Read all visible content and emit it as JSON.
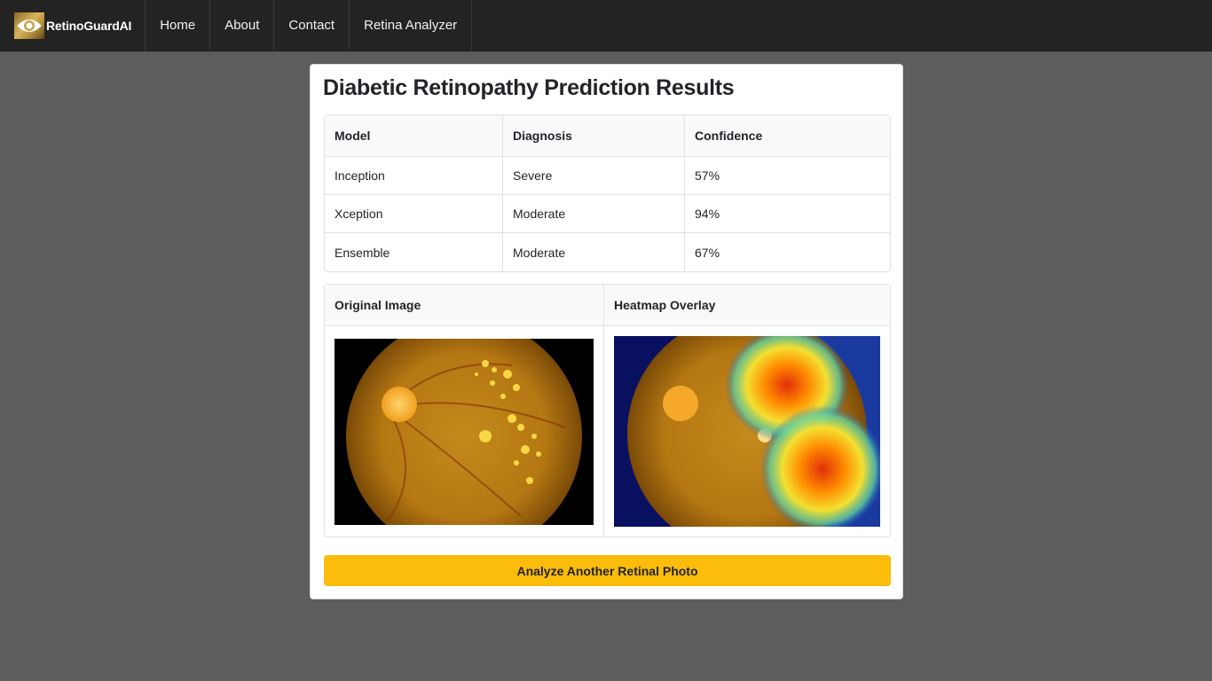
{
  "nav": {
    "brand": "RetinoGuardAI",
    "items": [
      "Home",
      "About",
      "Contact",
      "Retina Analyzer"
    ]
  },
  "page": {
    "title": "Diabetic Retinopathy Prediction Results"
  },
  "results": {
    "headers": [
      "Model",
      "Diagnosis",
      "Confidence"
    ],
    "rows": [
      {
        "model": "Inception",
        "diagnosis": "Severe",
        "confidence": "57%"
      },
      {
        "model": "Xception",
        "diagnosis": "Moderate",
        "confidence": "94%"
      },
      {
        "model": "Ensemble",
        "diagnosis": "Moderate",
        "confidence": "67%"
      }
    ]
  },
  "images": {
    "original_header": "Original Image",
    "heatmap_header": "Heatmap Overlay"
  },
  "actions": {
    "analyze_again": "Analyze Another Retinal Photo"
  },
  "colors": {
    "accent": "#fbbc0b",
    "navbar": "#232323",
    "background": "#5d5d5d"
  }
}
